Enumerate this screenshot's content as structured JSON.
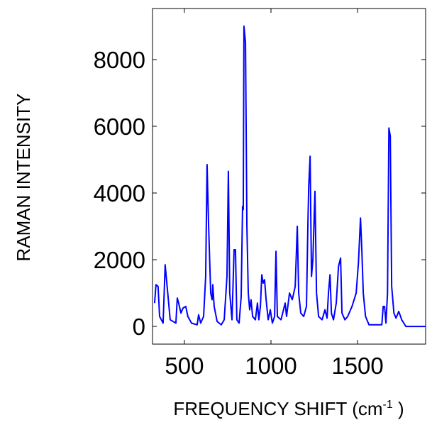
{
  "chart_data": {
    "type": "line",
    "xlabel": "FREQUENCY SHIFT (cm",
    "xlabel_sup": "-1",
    "xlabel_end": " )",
    "ylabel": "RAMAN INTENSITY",
    "x": [
      328,
      336,
      348,
      357,
      377,
      381,
      389,
      418,
      451,
      459,
      467,
      480,
      492,
      508,
      520,
      541,
      574,
      582,
      594,
      611,
      623,
      631,
      640,
      652,
      660,
      664,
      672,
      689,
      713,
      730,
      746,
      754,
      762,
      775,
      787,
      795,
      803,
      816,
      828,
      836,
      840,
      844,
      853,
      861,
      869,
      877,
      885,
      894,
      910,
      922,
      930,
      939,
      947,
      955,
      963,
      972,
      984,
      996,
      1008,
      1021,
      1029,
      1037,
      1058,
      1082,
      1090,
      1107,
      1123,
      1140,
      1152,
      1160,
      1172,
      1189,
      1205,
      1213,
      1218,
      1226,
      1234,
      1242,
      1254,
      1263,
      1275,
      1295,
      1312,
      1324,
      1332,
      1341,
      1349,
      1361,
      1377,
      1390,
      1402,
      1410,
      1427,
      1443,
      1468,
      1492,
      1505,
      1517,
      1525,
      1533,
      1546,
      1566,
      1607,
      1640,
      1648,
      1656,
      1664,
      1673,
      1681,
      1689,
      1697,
      1710,
      1722,
      1738,
      1755,
      1767,
      1779,
      1894
    ],
    "series": [
      {
        "name": "spectrum",
        "color": "#0000ff",
        "values": [
          700,
          1250,
          1200,
          300,
          100,
          650,
          1850,
          200,
          100,
          850,
          700,
          400,
          550,
          600,
          300,
          100,
          50,
          350,
          100,
          300,
          1500,
          4850,
          3000,
          1000,
          800,
          1250,
          600,
          150,
          50,
          200,
          1500,
          4650,
          1000,
          200,
          2300,
          2300,
          200,
          100,
          900,
          3600,
          3500,
          9000,
          8500,
          3000,
          1000,
          500,
          800,
          300,
          200,
          700,
          200,
          600,
          1550,
          1300,
          1400,
          800,
          200,
          500,
          100,
          300,
          2250,
          300,
          200,
          700,
          300,
          1000,
          800,
          1200,
          3000,
          1000,
          400,
          300,
          600,
          3000,
          4200,
          5100,
          1500,
          2000,
          4050,
          1000,
          300,
          200,
          500,
          250,
          1000,
          1550,
          400,
          200,
          700,
          1800,
          2050,
          400,
          200,
          300,
          600,
          1000,
          1900,
          3250,
          2250,
          1000,
          300,
          50,
          50,
          50,
          600,
          600,
          100,
          1000,
          5950,
          5700,
          1200,
          400,
          250,
          450,
          200,
          100,
          0,
          0
        ]
      }
    ],
    "xlim": [
      316,
      1893
    ],
    "ylim": [
      -530,
      9530
    ],
    "xticks": [
      500,
      1000,
      1500
    ],
    "yticks": [
      0,
      2000,
      4000,
      6000,
      8000
    ]
  }
}
